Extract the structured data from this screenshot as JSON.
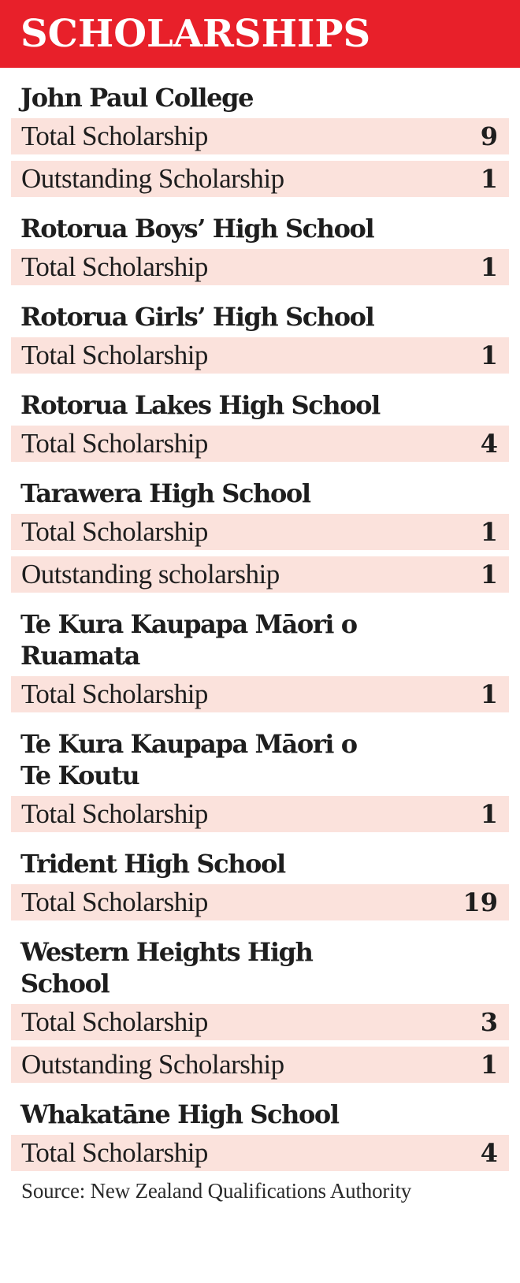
{
  "title": "SCHOLARSHIPS",
  "schools": [
    {
      "name": "John Paul College",
      "rows": [
        {
          "label": "Total Scholarship",
          "value": "9"
        },
        {
          "label": "Outstanding Scholarship",
          "value": "1"
        }
      ]
    },
    {
      "name": "Rotorua Boys’ High School",
      "rows": [
        {
          "label": "Total Scholarship",
          "value": "1"
        }
      ]
    },
    {
      "name": "Rotorua Girls’ High School",
      "rows": [
        {
          "label": "Total Scholarship",
          "value": "1"
        }
      ]
    },
    {
      "name": "Rotorua Lakes High School",
      "rows": [
        {
          "label": "Total Scholarship",
          "value": "4"
        }
      ]
    },
    {
      "name": "Tarawera High School",
      "rows": [
        {
          "label": "Total Scholarship",
          "value": "1"
        },
        {
          "label": "Outstanding scholarship",
          "value": "1"
        }
      ]
    },
    {
      "name": "Te Kura Kaupapa Māori o Ruamata",
      "rows": [
        {
          "label": "Total Scholarship",
          "value": "1"
        }
      ]
    },
    {
      "name": "Te Kura Kaupapa Māori o Te Koutu",
      "rows": [
        {
          "label": "Total Scholarship",
          "value": "1"
        }
      ]
    },
    {
      "name": "Trident High School",
      "rows": [
        {
          "label": "Total Scholarship",
          "value": "19"
        }
      ]
    },
    {
      "name": "Western Heights High School",
      "rows": [
        {
          "label": "Total Scholarship",
          "value": "3"
        },
        {
          "label": "Outstanding Scholarship",
          "value": "1"
        }
      ]
    },
    {
      "name": "Whakatāne High School",
      "rows": [
        {
          "label": "Total Scholarship",
          "value": "4"
        }
      ]
    }
  ],
  "source": "Source: New Zealand Qualifications Authority",
  "colors": {
    "header": "#e8202a",
    "row_bg": "#fbe2dc"
  }
}
